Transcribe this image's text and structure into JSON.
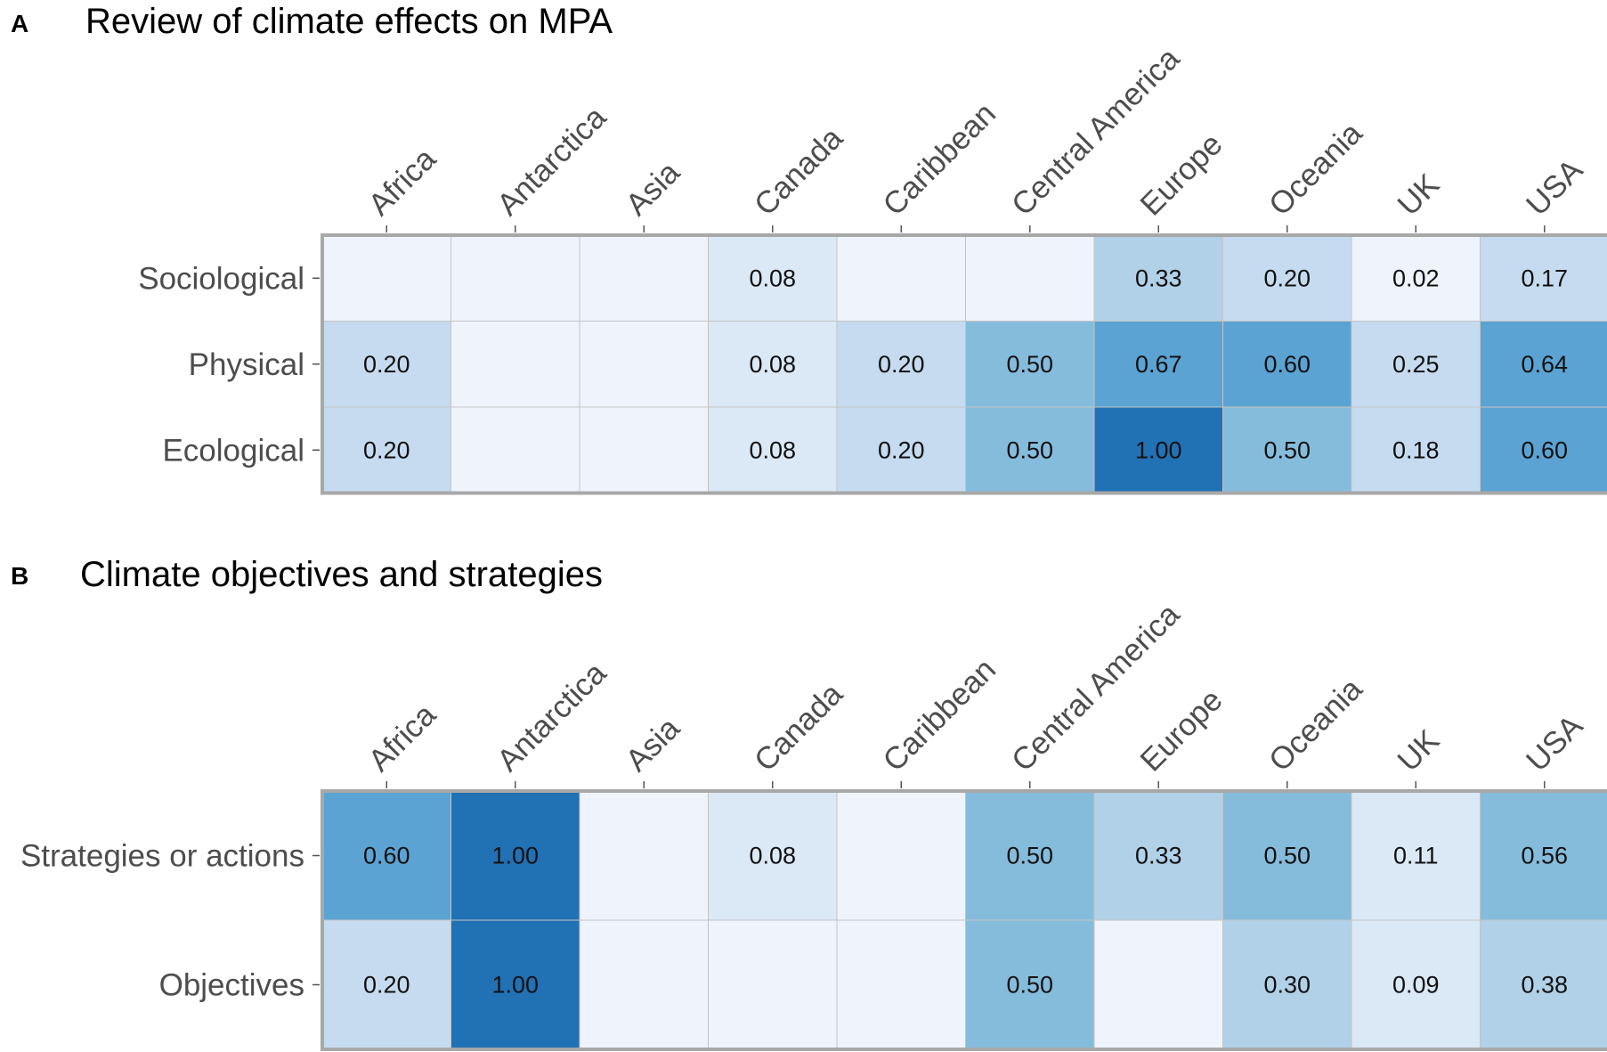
{
  "chart_data": [
    {
      "type": "heatmap",
      "panel": "A",
      "title": "Review of climate effects on MPA",
      "columns": [
        "Africa",
        "Antarctica",
        "Asia",
        "Canada",
        "Caribbean",
        "Central America",
        "Europe",
        "Oceania",
        "UK",
        "USA"
      ],
      "rows": [
        "Sociological",
        "Physical",
        "Ecological"
      ],
      "values": [
        [
          null,
          null,
          null,
          0.08,
          null,
          null,
          0.33,
          0.2,
          0.02,
          0.17
        ],
        [
          0.2,
          null,
          null,
          0.08,
          0.2,
          0.5,
          0.67,
          0.6,
          0.25,
          0.64
        ],
        [
          0.2,
          null,
          null,
          0.08,
          0.2,
          0.5,
          1.0,
          0.5,
          0.18,
          0.6
        ]
      ],
      "labels": [
        [
          "",
          "",
          "",
          "0.08",
          "",
          "",
          "0.33",
          "0.20",
          "0.02",
          "0.17"
        ],
        [
          "0.20",
          "",
          "",
          "0.08",
          "0.20",
          "0.50",
          "0.67",
          "0.60",
          "0.25",
          "0.64"
        ],
        [
          "0.20",
          "",
          "",
          "0.08",
          "0.20",
          "0.50",
          "1.00",
          "0.50",
          "0.18",
          "0.60"
        ]
      ]
    },
    {
      "type": "heatmap",
      "panel": "B",
      "title": "Climate objectives and strategies",
      "columns": [
        "Africa",
        "Antarctica",
        "Asia",
        "Canada",
        "Caribbean",
        "Central America",
        "Europe",
        "Oceania",
        "UK",
        "USA"
      ],
      "rows": [
        "Strategies or actions",
        "Objectives"
      ],
      "values": [
        [
          0.6,
          1.0,
          null,
          0.08,
          null,
          0.5,
          0.33,
          0.5,
          0.11,
          0.56
        ],
        [
          0.2,
          1.0,
          null,
          null,
          null,
          0.5,
          null,
          0.3,
          0.09,
          0.38
        ]
      ],
      "labels": [
        [
          "0.60",
          "1.00",
          "",
          "0.08",
          "",
          "0.50",
          "0.33",
          "0.50",
          "0.11",
          "0.56"
        ],
        [
          "0.20",
          "1.00",
          "",
          "",
          "",
          "0.50",
          "",
          "0.30",
          "0.09",
          "0.38"
        ]
      ]
    }
  ],
  "colors": {
    "empty": "#eef3fc",
    "scale": [
      "#eef3fc",
      "#dbe8f6",
      "#c6dbef",
      "#b0d1e8",
      "#85bcdc",
      "#6aaed6",
      "#5ba3d2",
      "#2171b5"
    ]
  }
}
